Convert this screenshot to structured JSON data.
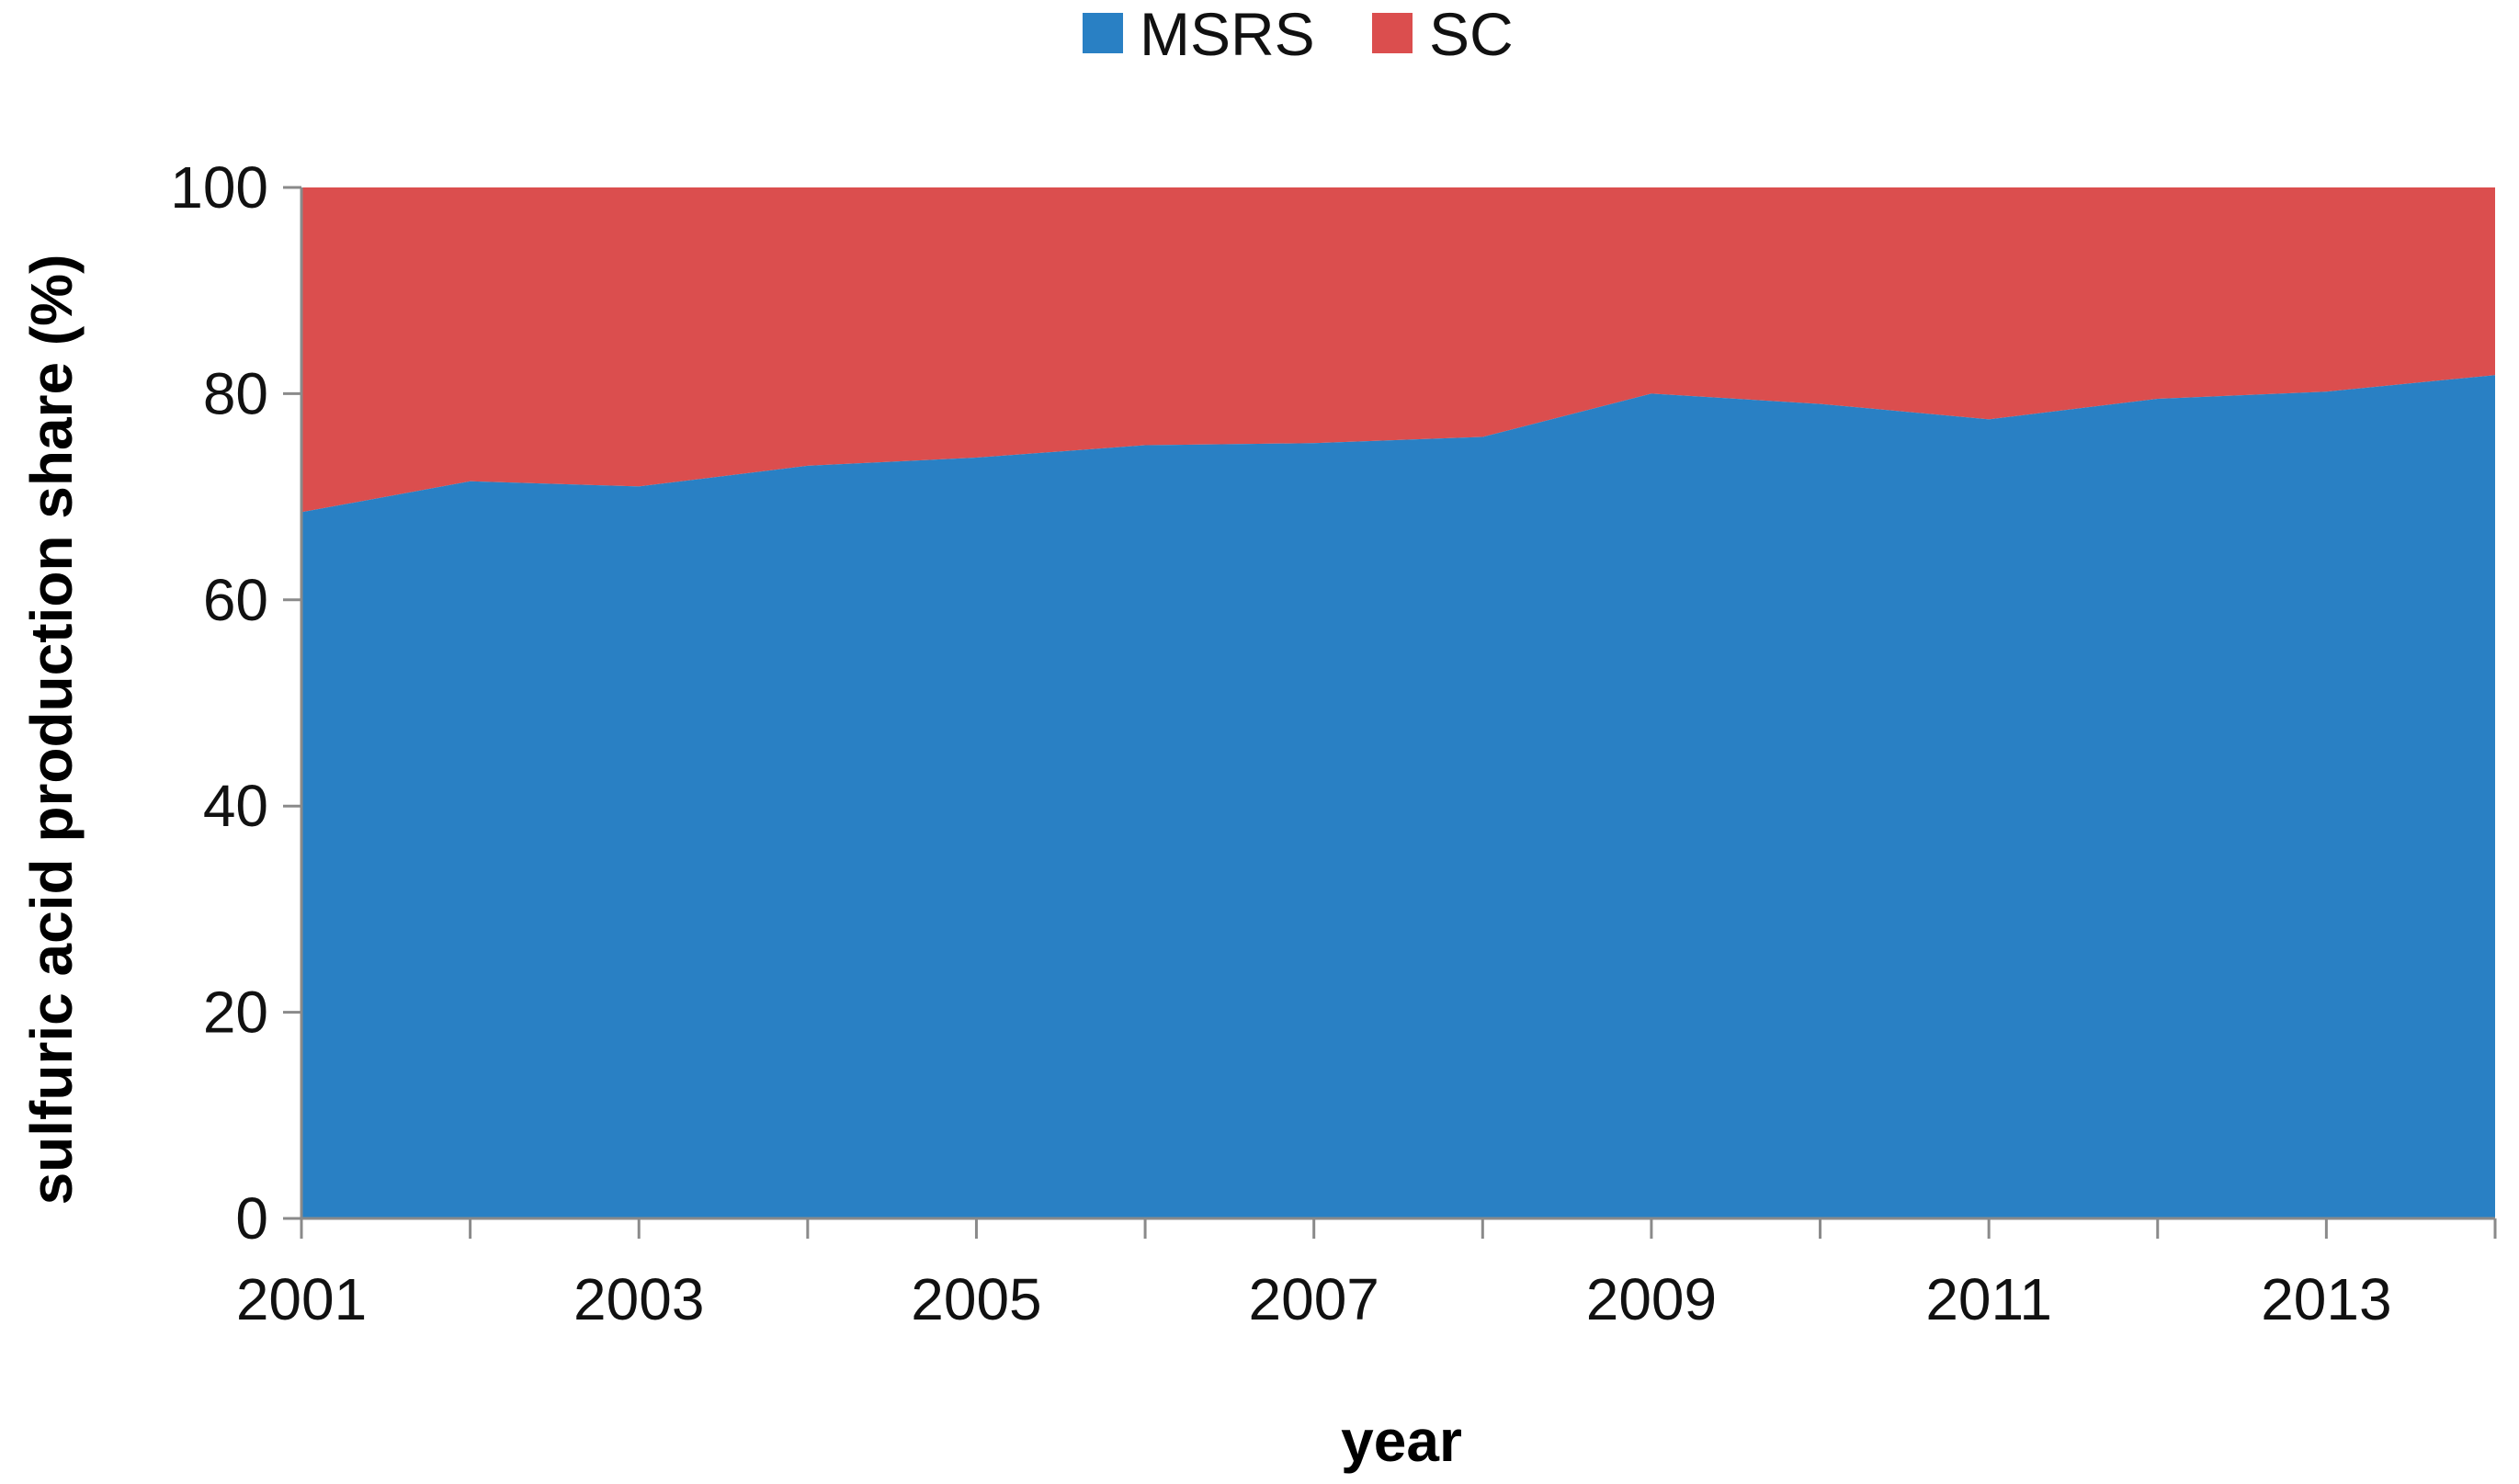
{
  "chart_data": {
    "type": "area",
    "stacked": true,
    "title": "",
    "xlabel": "year",
    "ylabel": "sulfuric acid production share (%)",
    "x": [
      2001,
      2002,
      2003,
      2004,
      2005,
      2006,
      2007,
      2008,
      2009,
      2010,
      2011,
      2012,
      2013,
      2014
    ],
    "xticks": [
      2001,
      2003,
      2005,
      2007,
      2009,
      2011,
      2013
    ],
    "xticks_labels": [
      "2001",
      "2003",
      "2005",
      "2007",
      "2009",
      "2011",
      "2013"
    ],
    "ylim": [
      0,
      100
    ],
    "yticks": [
      0,
      20,
      40,
      60,
      80,
      100
    ],
    "yticks_labels": [
      "0",
      "20",
      "40",
      "60",
      "80",
      "100"
    ],
    "grid": false,
    "legend_position": "top-center",
    "series": [
      {
        "name": "MSRS",
        "color": "#2980c4",
        "values": [
          68.5,
          71.5,
          71,
          73,
          73.8,
          75,
          75.2,
          75.8,
          80,
          79,
          77.5,
          79.5,
          80.2,
          81.8
        ]
      },
      {
        "name": "SC",
        "color": "#db4e4e",
        "values": [
          31.5,
          28.5,
          29,
          27,
          26.2,
          25,
          24.8,
          24.2,
          20,
          21,
          22.5,
          20.5,
          19.8,
          18.2
        ]
      }
    ]
  }
}
